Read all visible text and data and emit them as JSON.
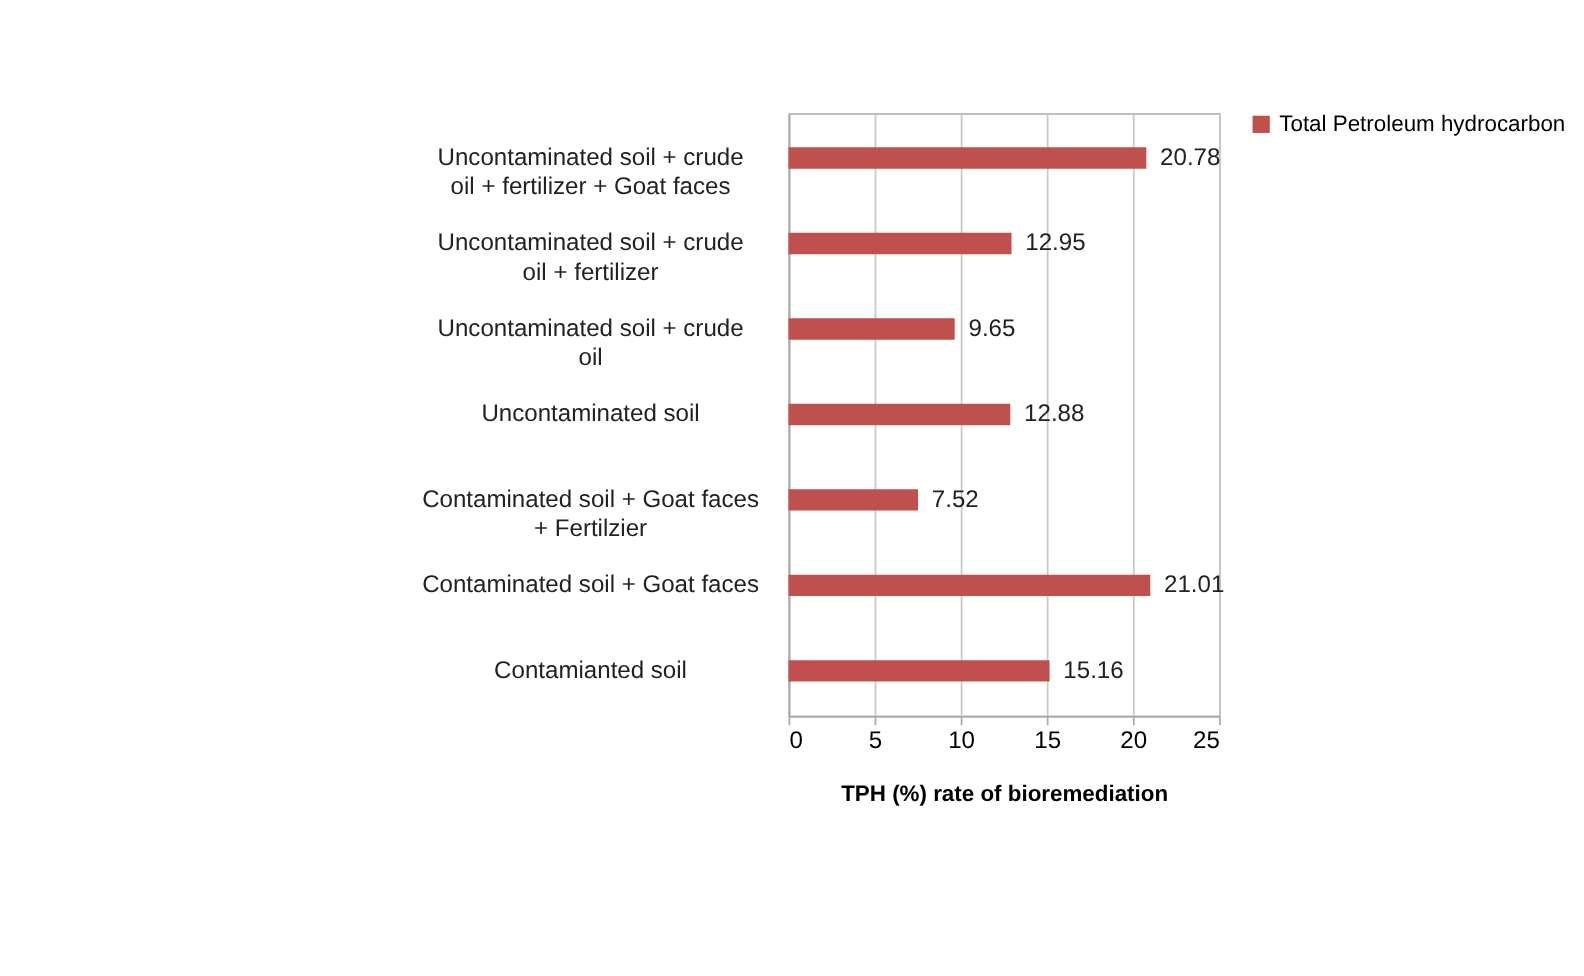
{
  "chart_data": {
    "type": "bar",
    "orientation": "horizontal",
    "xlabel": "TPH (%) rate of bioremediation",
    "categories": [
      "Uncontaminated soil + crude oil + fertilizer + Goat faces",
      "Uncontaminated soil + crude oil + fertilizer",
      "Uncontaminated soil + crude oil",
      "Uncontaminated soil",
      "Contaminated soil + Goat faces + Fertilzier",
      "Contaminated soil + Goat faces",
      "Contamianted soil"
    ],
    "series": [
      {
        "name": "Total Petroleum hydrocarbon",
        "color": "#c0504d",
        "values": [
          20.78,
          12.95,
          9.65,
          12.88,
          7.52,
          21.01,
          15.16
        ]
      }
    ],
    "xlim": [
      0,
      25
    ],
    "xticks": [
      0,
      5,
      10,
      15,
      20,
      25
    ],
    "grid": "x",
    "legend": "right",
    "data_labels": true
  }
}
